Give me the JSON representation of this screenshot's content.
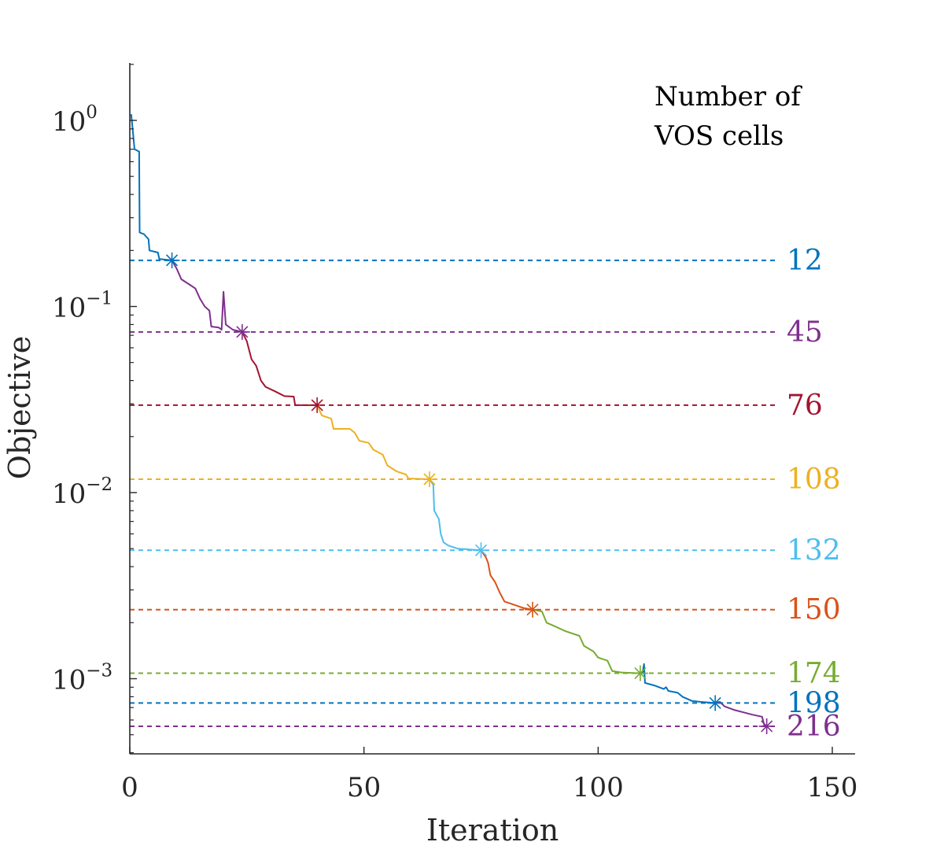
{
  "chart_data": {
    "type": "line",
    "xlabel": "Iteration",
    "ylabel": "Objective",
    "xlim": [
      0,
      155
    ],
    "ylim": [
      0.0004,
      2.0
    ],
    "y_scale": "log",
    "x_ticks": [
      0,
      50,
      100,
      150
    ],
    "y_ticks": [
      {
        "value": 1,
        "base": "10",
        "exp": "0"
      },
      {
        "value": 0.1,
        "base": "10",
        "exp": "−1"
      },
      {
        "value": 0.01,
        "base": "10",
        "exp": "−2"
      },
      {
        "value": 0.001,
        "base": "10",
        "exp": "−3"
      }
    ],
    "legend_title": [
      "Number of",
      "VOS cells"
    ],
    "grid": false,
    "series": [
      {
        "label": "12",
        "color": "#0072BD",
        "level": 0.177,
        "marker": [
          9,
          0.177
        ],
        "points": [
          [
            0.3,
            1.08
          ],
          [
            0.6,
            0.9
          ],
          [
            1,
            0.7
          ],
          [
            2,
            0.68
          ],
          [
            2.1,
            0.25
          ],
          [
            3,
            0.245
          ],
          [
            4,
            0.23
          ],
          [
            4.2,
            0.2
          ],
          [
            6,
            0.195
          ],
          [
            6.3,
            0.18
          ],
          [
            9,
            0.177
          ]
        ]
      },
      {
        "label": "45",
        "color": "#7E2F8E",
        "level": 0.073,
        "marker": [
          24,
          0.073
        ],
        "points": [
          [
            9,
            0.177
          ],
          [
            10,
            0.16
          ],
          [
            11,
            0.14
          ],
          [
            13,
            0.13
          ],
          [
            14,
            0.125
          ],
          [
            15,
            0.11
          ],
          [
            16,
            0.1
          ],
          [
            17,
            0.095
          ],
          [
            17.4,
            0.078
          ],
          [
            19,
            0.077
          ],
          [
            19.6,
            0.075
          ],
          [
            20,
            0.12
          ],
          [
            20.5,
            0.08
          ],
          [
            22,
            0.075
          ],
          [
            24,
            0.073
          ]
        ]
      },
      {
        "label": "76",
        "color": "#A2142F",
        "level": 0.0295,
        "marker": [
          40,
          0.0295
        ],
        "points": [
          [
            24,
            0.073
          ],
          [
            25,
            0.065
          ],
          [
            26,
            0.052
          ],
          [
            27,
            0.048
          ],
          [
            28,
            0.04
          ],
          [
            29,
            0.037
          ],
          [
            31,
            0.035
          ],
          [
            32,
            0.034
          ],
          [
            33,
            0.033
          ],
          [
            35,
            0.0328
          ],
          [
            35.3,
            0.0295
          ],
          [
            40,
            0.0295
          ]
        ]
      },
      {
        "label": "108",
        "color": "#EDB120",
        "level": 0.0118,
        "marker": [
          64,
          0.0118
        ],
        "points": [
          [
            40,
            0.0295
          ],
          [
            41,
            0.026
          ],
          [
            43,
            0.025
          ],
          [
            43.5,
            0.022
          ],
          [
            47,
            0.022
          ],
          [
            48,
            0.021
          ],
          [
            49,
            0.019
          ],
          [
            51,
            0.0185
          ],
          [
            52,
            0.017
          ],
          [
            54,
            0.016
          ],
          [
            55,
            0.014
          ],
          [
            57,
            0.013
          ],
          [
            59,
            0.0125
          ],
          [
            59.5,
            0.0119
          ],
          [
            64,
            0.0118
          ]
        ]
      },
      {
        "label": "132",
        "color": "#4DBEEE",
        "level": 0.0049,
        "marker": [
          75,
          0.0049
        ],
        "points": [
          [
            64,
            0.0118
          ],
          [
            64.8,
            0.011
          ],
          [
            65,
            0.008
          ],
          [
            66,
            0.0072
          ],
          [
            66.4,
            0.006
          ],
          [
            67,
            0.0054
          ],
          [
            68,
            0.0052
          ],
          [
            70,
            0.005
          ],
          [
            75,
            0.0049
          ]
        ]
      },
      {
        "label": "150",
        "color": "#D95319",
        "level": 0.00235,
        "marker": [
          86,
          0.00235
        ],
        "points": [
          [
            75,
            0.0049
          ],
          [
            76,
            0.0045
          ],
          [
            76.5,
            0.0042
          ],
          [
            77,
            0.0036
          ],
          [
            78,
            0.0033
          ],
          [
            79,
            0.0029
          ],
          [
            80,
            0.0026
          ],
          [
            82,
            0.0025
          ],
          [
            84,
            0.0024
          ],
          [
            86,
            0.00235
          ]
        ]
      },
      {
        "label": "174",
        "color": "#77AC30",
        "level": 0.00107,
        "marker": [
          109,
          0.00107
        ],
        "points": [
          [
            86,
            0.00235
          ],
          [
            88,
            0.0023
          ],
          [
            89,
            0.002
          ],
          [
            91,
            0.0019
          ],
          [
            93,
            0.0018
          ],
          [
            96,
            0.0017
          ],
          [
            97,
            0.0015
          ],
          [
            99,
            0.0014
          ],
          [
            100,
            0.0013
          ],
          [
            102,
            0.00125
          ],
          [
            103,
            0.0011
          ],
          [
            105,
            0.00108
          ],
          [
            109,
            0.00107
          ]
        ]
      },
      {
        "label": "198",
        "color": "#0072BD",
        "level": 0.00074,
        "marker": [
          125,
          0.00074
        ],
        "points": [
          [
            109,
            0.00107
          ],
          [
            109.5,
            0.00108
          ],
          [
            109.8,
            0.0012
          ],
          [
            110,
            0.00095
          ],
          [
            112,
            0.00092
          ],
          [
            114,
            0.00088
          ],
          [
            114.5,
            0.0009
          ],
          [
            115,
            0.00086
          ],
          [
            117,
            0.00084
          ],
          [
            118,
            0.0008
          ],
          [
            120,
            0.00076
          ],
          [
            122,
            0.00075
          ],
          [
            125,
            0.00074
          ]
        ]
      },
      {
        "label": "216",
        "color": "#7E2F8E",
        "level": 0.000555,
        "marker": [
          136,
          0.000555
        ],
        "points": [
          [
            125,
            0.00074
          ],
          [
            126,
            0.00075
          ],
          [
            127,
            0.00071
          ],
          [
            129,
            0.00068
          ],
          [
            131,
            0.00066
          ],
          [
            133,
            0.00064
          ],
          [
            135,
            0.000625
          ],
          [
            135.5,
            0.00056
          ],
          [
            136,
            0.000555
          ]
        ]
      }
    ]
  }
}
